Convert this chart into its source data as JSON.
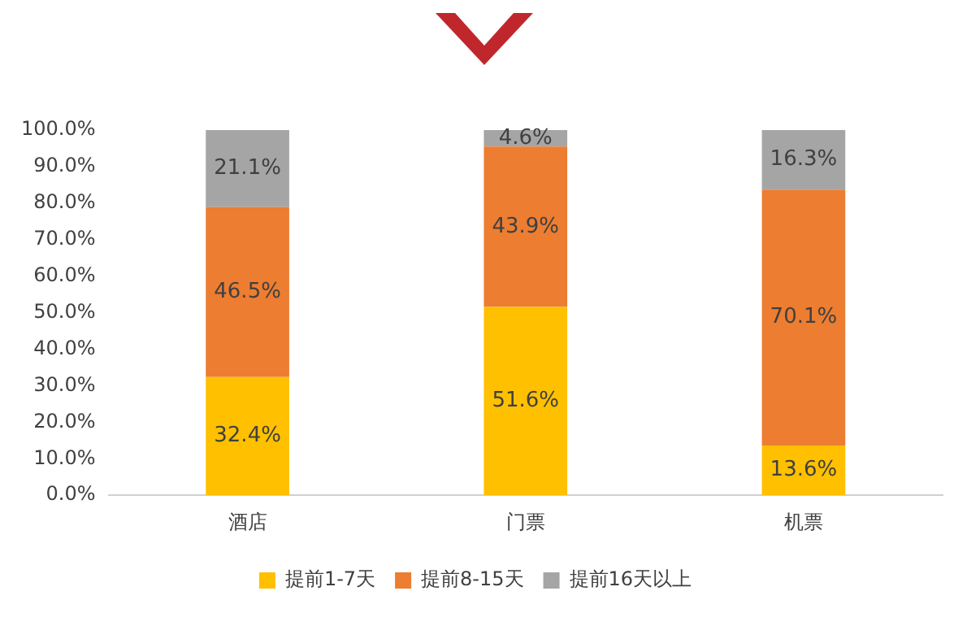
{
  "chart_data": {
    "type": "bar",
    "stacked": true,
    "categories": [
      "酒店",
      "门票",
      "机票"
    ],
    "series": [
      {
        "name": "提前1-7天",
        "color": "#ffc000",
        "values": [
          32.4,
          51.6,
          13.6
        ],
        "value_labels": [
          "32.4%",
          "51.6%",
          "13.6%"
        ]
      },
      {
        "name": "提前8-15天",
        "color": "#ed7d31",
        "values": [
          46.5,
          43.9,
          70.1
        ],
        "value_labels": [
          "46.5%",
          "43.9%",
          "70.1%"
        ]
      },
      {
        "name": "提前16天以上",
        "color": "#a5a5a5",
        "values": [
          21.1,
          4.6,
          16.3
        ],
        "value_labels": [
          "21.1%",
          "4.6%",
          "16.3%"
        ]
      }
    ],
    "ylim": [
      0,
      100
    ],
    "yticks": [
      {
        "value": 0,
        "label": "0.0%"
      },
      {
        "value": 10,
        "label": "10.0%"
      },
      {
        "value": 20,
        "label": "20.0%"
      },
      {
        "value": 30,
        "label": "30.0%"
      },
      {
        "value": 40,
        "label": "40.0%"
      },
      {
        "value": 50,
        "label": "50.0%"
      },
      {
        "value": 60,
        "label": "60.0%"
      },
      {
        "value": 70,
        "label": "70.0%"
      },
      {
        "value": 80,
        "label": "80.0%"
      },
      {
        "value": 90,
        "label": "90.0%"
      },
      {
        "value": 100,
        "label": "100.0%"
      }
    ],
    "grid": false,
    "legend": "bottom"
  }
}
